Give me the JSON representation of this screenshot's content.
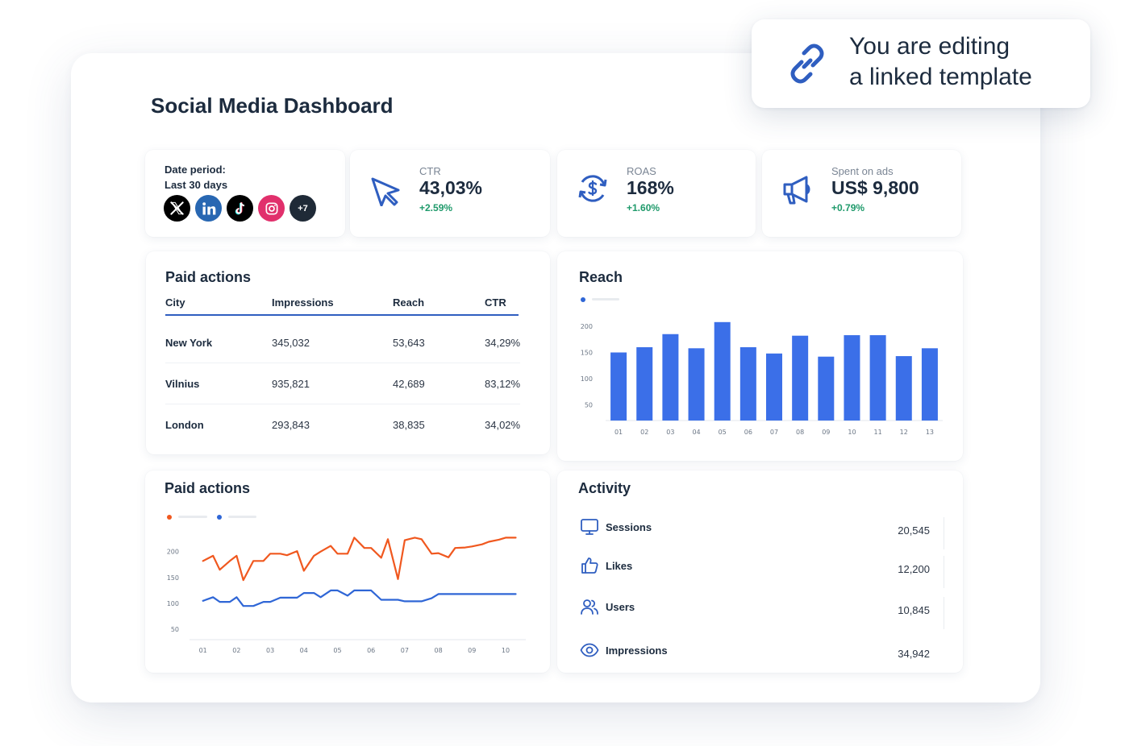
{
  "page": {
    "title": "Social Media Dashboard"
  },
  "tooltip": {
    "line1": "You are editing",
    "line2": "a linked template",
    "icon": "link-icon"
  },
  "date_card": {
    "label": "Date period:",
    "value": "Last 30 days",
    "socials": [
      {
        "name": "x-icon",
        "color": "#000000"
      },
      {
        "name": "linkedin-icon",
        "color": "#2867b2"
      },
      {
        "name": "tiktok-icon",
        "color": "#000000"
      },
      {
        "name": "instagram-icon",
        "color": "#e1306c"
      }
    ],
    "more_label": "+7"
  },
  "kpis": [
    {
      "label": "CTR",
      "value": "43,03%",
      "change": "+2.59%",
      "icon": "cursor-icon"
    },
    {
      "label": "ROAS",
      "value": "168%",
      "change": "+1.60%",
      "icon": "dollar-refresh-icon"
    },
    {
      "label": "Spent on ads",
      "value": "US$ 9,800",
      "change": "+0.79%",
      "icon": "megaphone-icon"
    }
  ],
  "paid_table": {
    "title": "Paid actions",
    "headers": [
      "City",
      "Impressions",
      "Reach",
      "CTR"
    ],
    "rows": [
      [
        "New York",
        "345,032",
        "53,643",
        "34,29%"
      ],
      [
        "Vilnius",
        "935,821",
        "42,689",
        "83,12%"
      ],
      [
        "London",
        "293,843",
        "38,835",
        "34,02%"
      ]
    ]
  },
  "reach_chart": {
    "title": "Reach"
  },
  "line_chart_card": {
    "title": "Paid actions"
  },
  "activity": {
    "title": "Activity",
    "items": [
      {
        "label": "Sessions",
        "value": "20,545",
        "icon": "monitor-icon"
      },
      {
        "label": "Likes",
        "value": "12,200",
        "icon": "thumbs-up-icon"
      },
      {
        "label": "Users",
        "value": "10,845",
        "icon": "users-icon"
      },
      {
        "label": "Impressions",
        "value": "34,942",
        "icon": "eye-icon"
      }
    ]
  },
  "colors": {
    "accent_blue": "#2f5ec0",
    "bar_blue": "#3b6fe8",
    "line_orange": "#f0581f",
    "line_blue": "#2f66d6",
    "positive_green": "#1f9a6b"
  },
  "chart_data": [
    {
      "type": "bar",
      "title": "Reach",
      "categories": [
        "01",
        "02",
        "03",
        "04",
        "05",
        "06",
        "07",
        "08",
        "09",
        "10",
        "11",
        "12",
        "13"
      ],
      "values": [
        150,
        160,
        185,
        158,
        208,
        160,
        148,
        182,
        142,
        183,
        183,
        143,
        158
      ],
      "yticks": [
        50,
        100,
        150,
        200
      ],
      "ylim": [
        20,
        220
      ],
      "grid": false
    },
    {
      "type": "line",
      "title": "Paid actions",
      "categories": [
        "01",
        "02",
        "03",
        "04",
        "05",
        "06",
        "07",
        "08",
        "09",
        "10"
      ],
      "x": [
        1,
        1.3,
        1.5,
        1.8,
        2,
        2.2,
        2.5,
        2.8,
        3,
        3.3,
        3.5,
        3.8,
        4,
        4.3,
        4.5,
        4.8,
        5,
        5.3,
        5.5,
        5.8,
        6,
        6.3,
        6.5,
        6.8,
        7,
        7.3,
        7.5,
        7.8,
        8,
        8.3,
        8.5,
        8.8,
        9,
        9.3,
        9.5,
        9.8,
        10,
        10.3
      ],
      "series": [
        {
          "values": [
            182,
            192,
            165,
            182,
            192,
            145,
            182,
            182,
            196,
            196,
            193,
            201,
            163,
            192,
            200,
            211,
            196,
            196,
            227,
            207,
            207,
            188,
            224,
            147,
            222,
            227,
            224,
            196,
            197,
            189,
            207,
            208,
            210,
            214,
            219,
            223,
            227,
            227
          ]
        },
        {
          "values": [
            105,
            112,
            103,
            103,
            112,
            95,
            95,
            103,
            103,
            111,
            111,
            111,
            120,
            120,
            112,
            125,
            125,
            115,
            125,
            125,
            125,
            107,
            107,
            107,
            104,
            104,
            104,
            110,
            118,
            118,
            118,
            118,
            118,
            118,
            118,
            118,
            118,
            118
          ]
        }
      ],
      "yticks": [
        50,
        100,
        150,
        200
      ],
      "ylim": [
        30,
        240
      ],
      "grid": false
    }
  ]
}
